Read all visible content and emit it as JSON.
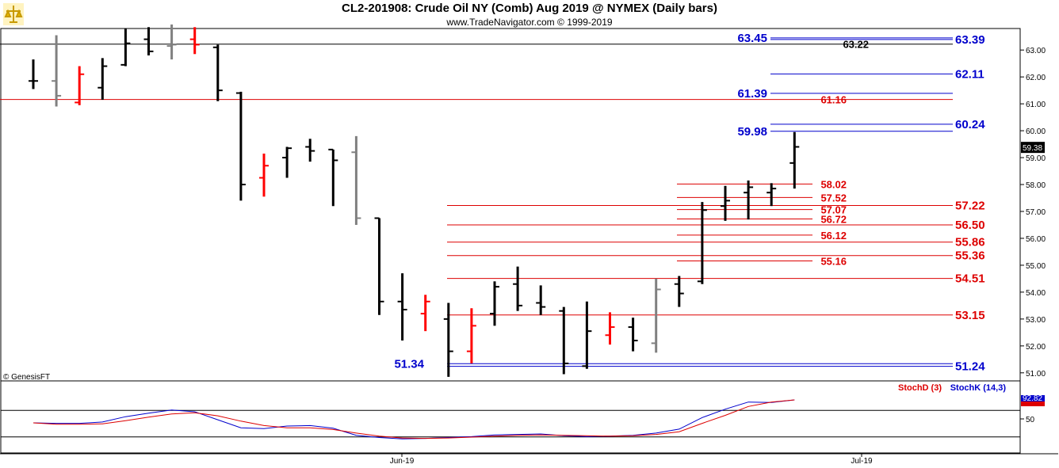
{
  "title": "CL2-201908:  Crude Oil NY (Comb) Aug 2019 @ NYMEX  (Daily bars)",
  "subtitle": "www.TradeNavigator.com © 1999-2019",
  "copyright": "© GenesisFT",
  "colors": {
    "up_bar": "#000000",
    "down_bar": "#ff0000",
    "inside_bar": "#808080",
    "level_blue": "#0000cc",
    "level_red": "#dd0000",
    "stoch_k": "#0000cc",
    "stoch_d": "#dd0000"
  },
  "chart_data": [
    {
      "type": "ohlc",
      "ylim": [
        50.7,
        63.8
      ],
      "yticks": [
        "51.00",
        "52.00",
        "53.00",
        "54.00",
        "55.00",
        "56.00",
        "57.00",
        "58.00",
        "59.00",
        "60.00",
        "61.00",
        "62.00",
        "63.00"
      ],
      "xticks": [
        "Jun-19",
        "Jul-19"
      ],
      "last_price": "59.38",
      "bars": [
        {
          "o": 61.85,
          "h": 62.65,
          "l": 61.55,
          "c": 61.85,
          "color": "black"
        },
        {
          "o": 61.85,
          "h": 63.55,
          "l": 60.9,
          "c": 61.3,
          "color": "gray"
        },
        {
          "o": 61.05,
          "h": 62.4,
          "l": 60.95,
          "c": 62.1,
          "color": "red"
        },
        {
          "o": 61.6,
          "h": 62.7,
          "l": 61.15,
          "c": 62.4,
          "color": "black"
        },
        {
          "o": 62.45,
          "h": 63.8,
          "l": 62.4,
          "c": 63.25,
          "color": "black"
        },
        {
          "o": 63.4,
          "h": 63.85,
          "l": 62.8,
          "c": 62.95,
          "color": "black"
        },
        {
          "o": 63.15,
          "h": 63.95,
          "l": 62.65,
          "c": 63.2,
          "color": "gray"
        },
        {
          "o": 63.4,
          "h": 63.85,
          "l": 62.85,
          "c": 63.2,
          "color": "red"
        },
        {
          "o": 63.1,
          "h": 63.2,
          "l": 61.1,
          "c": 61.5,
          "color": "black"
        },
        {
          "o": 61.4,
          "h": 61.45,
          "l": 57.4,
          "c": 58.0,
          "color": "black"
        },
        {
          "o": 58.25,
          "h": 59.15,
          "l": 57.55,
          "c": 58.7,
          "color": "red"
        },
        {
          "o": 59.0,
          "h": 59.4,
          "l": 58.25,
          "c": 59.35,
          "color": "black"
        },
        {
          "o": 59.4,
          "h": 59.7,
          "l": 58.85,
          "c": 59.25,
          "color": "black"
        },
        {
          "o": 59.3,
          "h": 59.3,
          "l": 57.2,
          "c": 58.9,
          "color": "black"
        },
        {
          "o": 59.2,
          "h": 59.8,
          "l": 56.5,
          "c": 56.75,
          "color": "gray"
        },
        {
          "o": 56.75,
          "h": 56.75,
          "l": 53.15,
          "c": 53.65,
          "color": "black"
        },
        {
          "o": 53.65,
          "h": 54.7,
          "l": 52.2,
          "c": 53.35,
          "color": "black"
        },
        {
          "o": 53.2,
          "h": 53.9,
          "l": 52.55,
          "c": 53.65,
          "color": "red"
        },
        {
          "o": 53.0,
          "h": 53.6,
          "l": 50.85,
          "c": 51.8,
          "color": "black"
        },
        {
          "o": 51.8,
          "h": 53.4,
          "l": 51.35,
          "c": 52.75,
          "color": "red"
        },
        {
          "o": 53.2,
          "h": 54.4,
          "l": 52.75,
          "c": 54.2,
          "color": "black"
        },
        {
          "o": 54.3,
          "h": 54.95,
          "l": 53.3,
          "c": 53.5,
          "color": "black"
        },
        {
          "o": 53.6,
          "h": 54.25,
          "l": 53.15,
          "c": 53.45,
          "color": "black"
        },
        {
          "o": 53.3,
          "h": 53.45,
          "l": 50.95,
          "c": 51.35,
          "color": "black"
        },
        {
          "o": 51.25,
          "h": 53.65,
          "l": 51.15,
          "c": 52.55,
          "color": "black"
        },
        {
          "o": 52.4,
          "h": 53.25,
          "l": 52.05,
          "c": 52.7,
          "color": "red"
        },
        {
          "o": 52.7,
          "h": 53.05,
          "l": 51.8,
          "c": 52.2,
          "color": "black"
        },
        {
          "o": 52.1,
          "h": 54.5,
          "l": 51.75,
          "c": 54.1,
          "color": "gray"
        },
        {
          "o": 54.3,
          "h": 54.6,
          "l": 53.45,
          "c": 53.95,
          "color": "black"
        },
        {
          "o": 54.4,
          "h": 57.35,
          "l": 54.3,
          "c": 57.05,
          "color": "black"
        },
        {
          "o": 57.2,
          "h": 57.95,
          "l": 56.65,
          "c": 57.4,
          "color": "black"
        },
        {
          "o": 57.7,
          "h": 58.15,
          "l": 56.7,
          "c": 57.9,
          "color": "black"
        },
        {
          "o": 57.7,
          "h": 58.05,
          "l": 57.2,
          "c": 57.85,
          "color": "black"
        },
        {
          "o": 58.8,
          "h": 59.95,
          "l": 57.85,
          "c": 59.4,
          "color": "black"
        }
      ],
      "levels": [
        {
          "value": 63.45,
          "label": "63.45",
          "side": "left",
          "color": "blue"
        },
        {
          "value": 63.39,
          "label": "63.39",
          "side": "right",
          "color": "blue"
        },
        {
          "value": 63.22,
          "label": "63.22",
          "side": "center",
          "color": "black"
        },
        {
          "value": 62.11,
          "label": "62.11",
          "side": "right",
          "color": "blue"
        },
        {
          "value": 61.39,
          "label": "61.39",
          "side": "left",
          "color": "blue"
        },
        {
          "value": 61.16,
          "label": "61.16",
          "side": "center",
          "color": "red"
        },
        {
          "value": 60.24,
          "label": "60.24",
          "side": "right",
          "color": "blue"
        },
        {
          "value": 59.98,
          "label": "59.98",
          "side": "left",
          "color": "blue"
        },
        {
          "value": 58.02,
          "label": "58.02",
          "side": "center",
          "color": "red"
        },
        {
          "value": 57.52,
          "label": "57.52",
          "side": "center",
          "color": "red"
        },
        {
          "value": 57.22,
          "label": "57.22",
          "side": "right",
          "color": "red"
        },
        {
          "value": 57.07,
          "label": "57.07",
          "side": "center",
          "color": "red"
        },
        {
          "value": 56.72,
          "label": "56.72",
          "side": "center",
          "color": "red"
        },
        {
          "value": 56.5,
          "label": "56.50",
          "side": "right",
          "color": "red"
        },
        {
          "value": 56.12,
          "label": "56.12",
          "side": "center",
          "color": "red"
        },
        {
          "value": 55.86,
          "label": "55.86",
          "side": "right",
          "color": "red"
        },
        {
          "value": 55.36,
          "label": "55.36",
          "side": "right",
          "color": "red"
        },
        {
          "value": 55.16,
          "label": "55.16",
          "side": "center",
          "color": "red"
        },
        {
          "value": 54.51,
          "label": "54.51",
          "side": "right",
          "color": "red"
        },
        {
          "value": 53.15,
          "label": "53.15",
          "side": "right",
          "color": "red"
        },
        {
          "value": 51.34,
          "label": "51.34",
          "side": "left",
          "color": "blue"
        },
        {
          "value": 51.24,
          "label": "51.24",
          "side": "right",
          "color": "blue"
        }
      ]
    },
    {
      "type": "line",
      "ylim": [
        0,
        100
      ],
      "yticks": [
        "50"
      ],
      "last_value": "92.82",
      "legend": [
        "StochD (3)",
        "StochK (14,3)"
      ],
      "series": [
        {
          "name": "StochK (14,3)",
          "color": "blue",
          "values": [
            41,
            40,
            40,
            43,
            55,
            63,
            70,
            66,
            48,
            30,
            28,
            34,
            35,
            29,
            13,
            8,
            5,
            6,
            8,
            10,
            14,
            15,
            16,
            12,
            10,
            11,
            13,
            18,
            27,
            53,
            72,
            88,
            87,
            92.8
          ]
        },
        {
          "name": "StochD (3)",
          "color": "red",
          "values": [
            41,
            38,
            38,
            39,
            46,
            54,
            61,
            64,
            57,
            45,
            35,
            30,
            30,
            26,
            18,
            11,
            7,
            6,
            7,
            9,
            11,
            13,
            14,
            13,
            12,
            11,
            12,
            15,
            21,
            40,
            58,
            78,
            88,
            92.8
          ]
        }
      ]
    }
  ]
}
